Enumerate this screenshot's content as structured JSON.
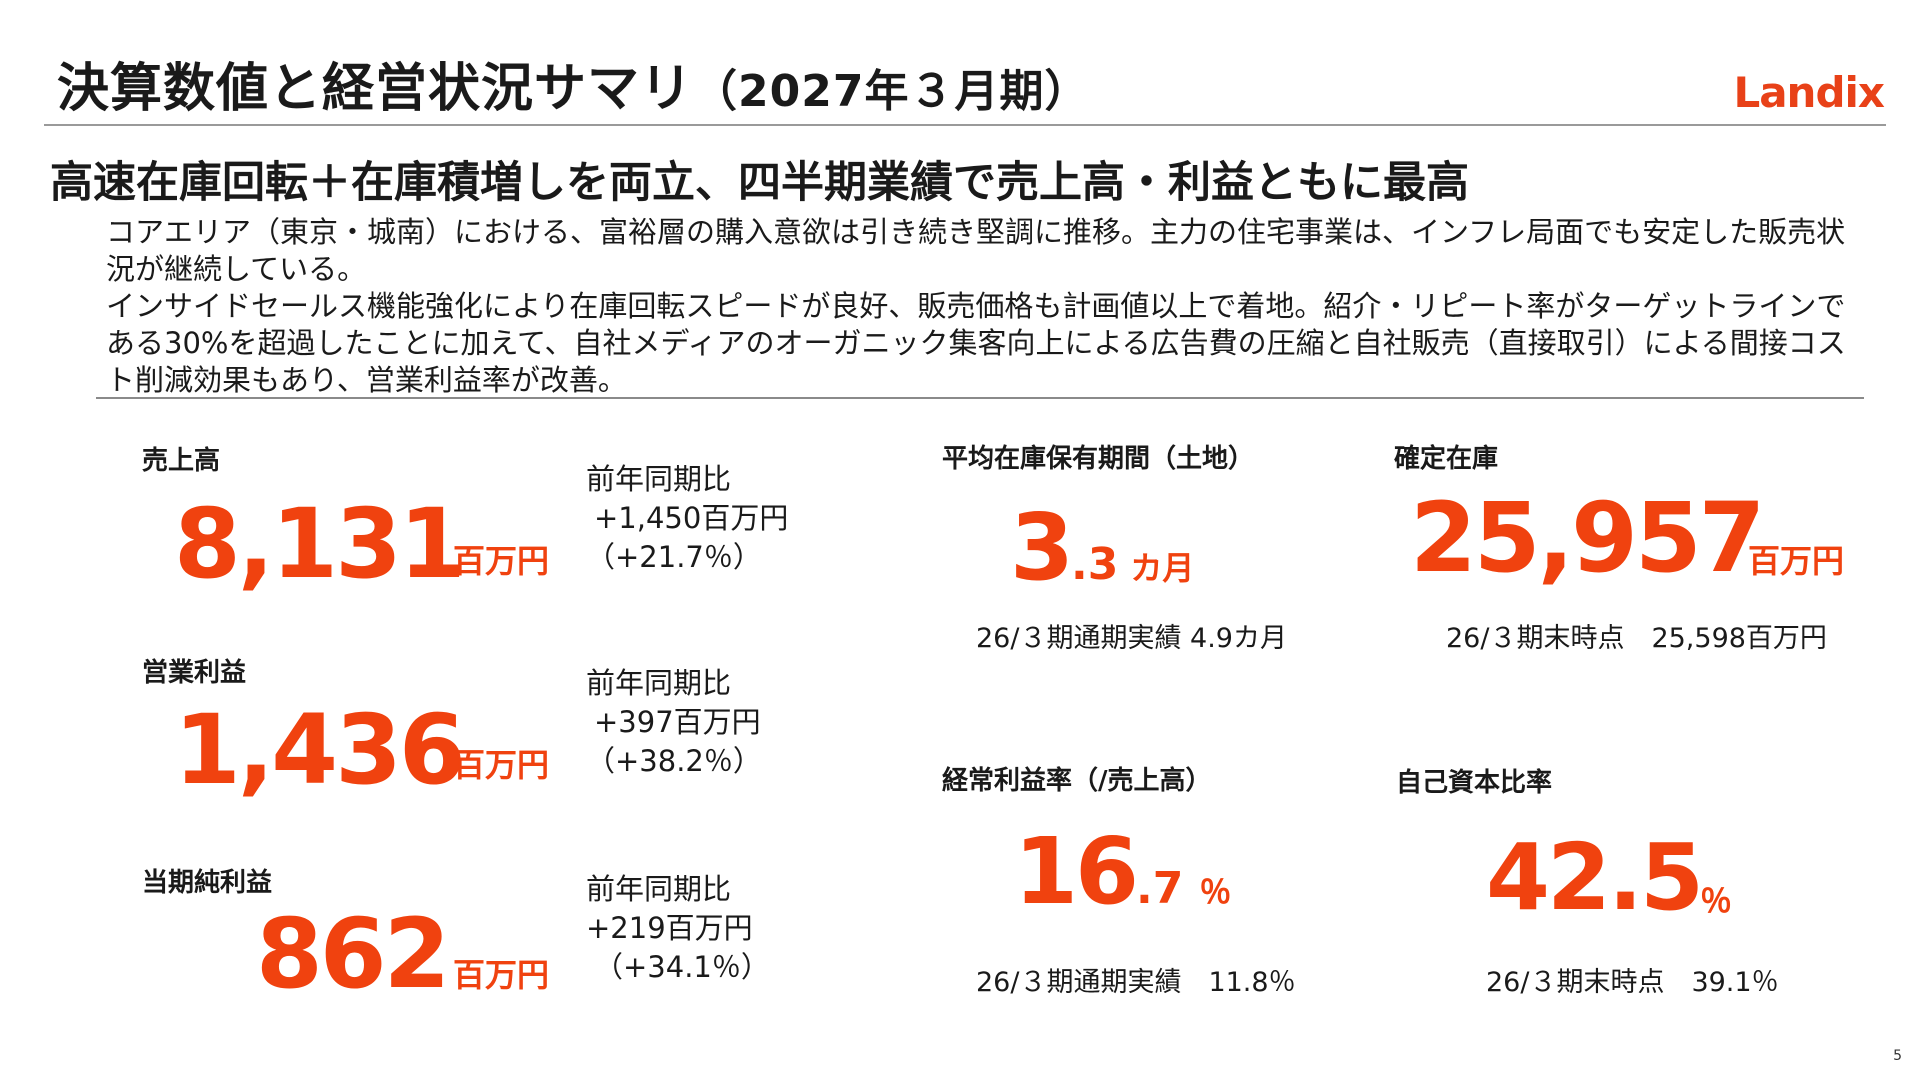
{
  "header": {
    "title": "決算数値と経営状況サマリ",
    "period": "（2027年３月期）",
    "logo": "Landix",
    "accent_color": "#f0420f"
  },
  "headline": "高速在庫回転＋在庫積増しを両立、四半期業績で売上高・利益ともに最高",
  "summary": {
    "paragraph1": "コアエリア（東京・城南）における、富裕層の購入意欲は引き続き堅調に推移。主力の住宅事業は、インフレ局面でも安定した販売状況が継続している。",
    "paragraph2": "インサイドセールス機能強化により在庫回転スピードが良好、販売価格も計画値以上で着地。紹介・リピート率がターゲットラインである30%を超過したことに加えて、自社メディアのオーガニック集客向上による広告費の圧縮と自社販売（直接取引）による間接コスト削減効果もあり、営業利益率が改善。"
  },
  "left_metrics": [
    {
      "label": "売上高",
      "value": "8,131",
      "unit": "百万円",
      "yoy_label": "前年同期比",
      "yoy_amount": "+1,450百万円",
      "yoy_pct": "（+21.7％）"
    },
    {
      "label": "営業利益",
      "value": "1,436",
      "unit": "百万円",
      "yoy_label": "前年同期比",
      "yoy_amount": "+397百万円",
      "yoy_pct": "（+38.2％）"
    },
    {
      "label": "当期純利益",
      "value": "862",
      "unit": "百万円",
      "yoy_label": "前年同期比",
      "yoy_amount": "+219百万円",
      "yoy_pct": "（+34.1％）"
    }
  ],
  "right_metrics": [
    {
      "label": "平均在庫保有期間（土地）",
      "value_int": "3",
      "value_dec": ".3",
      "unit": "カ月",
      "note": "26/３期通期実績  4.9カ月"
    },
    {
      "label": "確定在庫",
      "value_int": "25,957",
      "value_dec": "",
      "unit": "百万円",
      "note": "26/３期末時点　25,598百万円"
    },
    {
      "label": "経常利益率（/売上高）",
      "value_int": "16",
      "value_dec": ".7",
      "unit": "％",
      "note": "26/３期通期実績　11.8％"
    },
    {
      "label": "自己資本比率",
      "value_int": "42.5",
      "value_dec": "",
      "unit": "％",
      "note": "26/３期末時点　39.1％"
    }
  ],
  "page_number": "5"
}
